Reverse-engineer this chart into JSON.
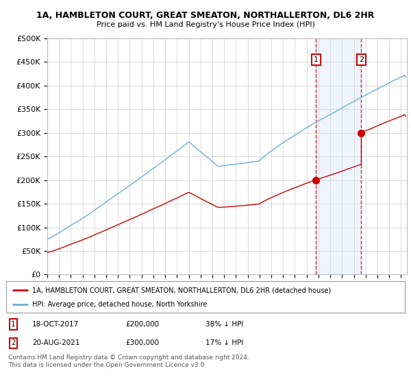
{
  "title": "1A, HAMBLETON COURT, GREAT SMEATON, NORTHALLERTON, DL6 2HR",
  "subtitle": "Price paid vs. HM Land Registry's House Price Index (HPI)",
  "ylabel_ticks": [
    "£0",
    "£50K",
    "£100K",
    "£150K",
    "£200K",
    "£250K",
    "£300K",
    "£350K",
    "£400K",
    "£450K",
    "£500K"
  ],
  "ytick_values": [
    0,
    50000,
    100000,
    150000,
    200000,
    250000,
    300000,
    350000,
    400000,
    450000,
    500000
  ],
  "ylim": [
    0,
    500000
  ],
  "xlim_start": 1995.0,
  "xlim_end": 2025.5,
  "hpi_color": "#6aaed6",
  "property_color": "#cc0000",
  "purchase1_date": 2017.8,
  "purchase1_price": 200000,
  "purchase2_date": 2021.63,
  "purchase2_price": 300000,
  "vline_color": "#dd2222",
  "shade_color": "#ddeeff",
  "legend1_text": "1A, HAMBLETON COURT, GREAT SMEATON, NORTHALLERTON, DL6 2HR (detached house)",
  "legend2_text": "HPI: Average price, detached house, North Yorkshire",
  "footer": "Contains HM Land Registry data © Crown copyright and database right 2024.\nThis data is licensed under the Open Government Licence v3.0.",
  "background_color": "#ffffff",
  "grid_color": "#cccccc"
}
